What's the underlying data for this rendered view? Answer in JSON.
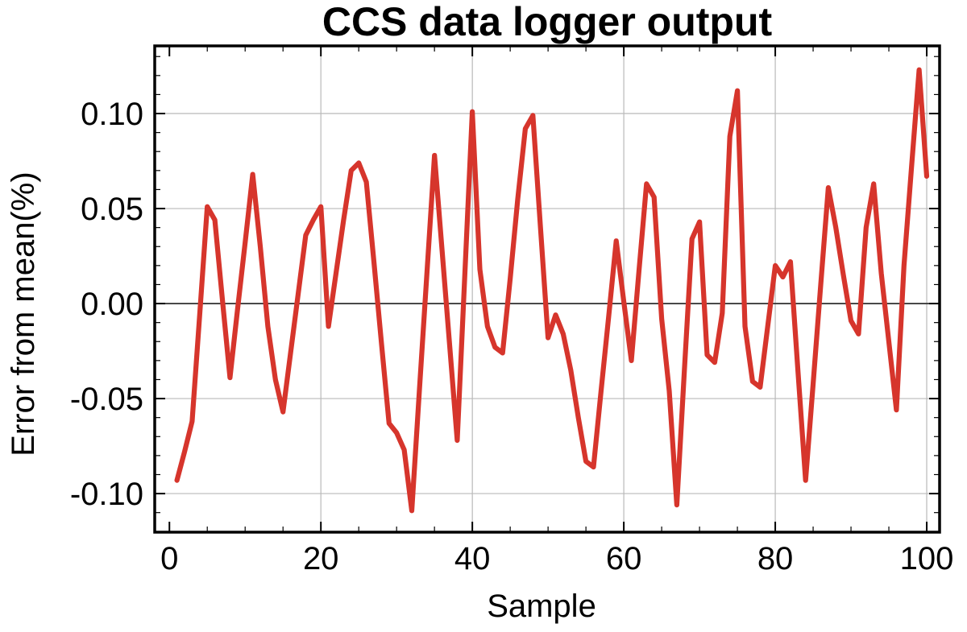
{
  "page": {
    "background": "#ffffff"
  },
  "chart_data": {
    "type": "line",
    "title": "CCS data logger output",
    "xlabel": "Sample",
    "ylabel": "Error from mean(%)",
    "x_start": 1,
    "values": [
      -0.093,
      -0.078,
      -0.062,
      -0.006,
      0.051,
      0.044,
      0.002,
      -0.039,
      -0.003,
      0.032,
      0.068,
      0.03,
      -0.012,
      -0.04,
      -0.057,
      -0.026,
      0.005,
      0.036,
      0.044,
      0.051,
      -0.012,
      0.016,
      0.044,
      0.07,
      0.074,
      0.064,
      0.022,
      -0.021,
      -0.063,
      -0.068,
      -0.077,
      -0.109,
      -0.046,
      0.016,
      0.078,
      0.028,
      -0.022,
      -0.072,
      0.015,
      0.101,
      0.018,
      -0.012,
      -0.023,
      -0.026,
      0.013,
      0.055,
      0.092,
      0.099,
      0.04,
      -0.018,
      -0.006,
      -0.016,
      -0.035,
      -0.06,
      -0.083,
      -0.086,
      -0.046,
      -0.007,
      0.033,
      0.001,
      -0.03,
      0.017,
      0.063,
      0.056,
      -0.008,
      -0.046,
      -0.106,
      -0.035,
      0.034,
      0.043,
      -0.027,
      -0.031,
      -0.005,
      0.088,
      0.112,
      -0.012,
      -0.041,
      -0.044,
      -0.012,
      0.02,
      0.014,
      0.022,
      -0.036,
      -0.093,
      -0.042,
      0.01,
      0.061,
      0.04,
      0.015,
      -0.009,
      -0.016,
      0.04,
      0.063,
      0.016,
      -0.02,
      -0.056,
      0.02,
      0.072,
      0.123,
      0.067
    ],
    "xlim": [
      -1.94,
      101.7
    ],
    "ylim": [
      -0.1203,
      0.1356
    ],
    "x_ticks_major": [
      0,
      20,
      40,
      60,
      80,
      100
    ],
    "x_tick_labels": [
      "0",
      "20",
      "40",
      "60",
      "80",
      "100"
    ],
    "x_tick_minor_step": 5,
    "y_ticks_major": [
      0.1,
      0.05,
      0.0,
      -0.05,
      -0.1
    ],
    "y_tick_labels": [
      "0.10",
      "0.05",
      "0.00",
      "-0.05",
      "-0.10"
    ],
    "y_tick_minor_step": 0.01,
    "y_minor_range": [
      -0.12,
      0.13
    ],
    "grid_x": [
      20,
      40,
      60,
      80,
      100
    ],
    "grid_y": [
      0.1,
      0.05,
      -0.05,
      -0.1
    ],
    "zero_line": 0.0,
    "grid_on": true,
    "legend": "none",
    "line_color": "#d6352c",
    "grid_color": "#b9b9b9",
    "zero_line_color": "#3c3c3c",
    "frame_color": "#000000",
    "text_color": "#000000",
    "line_width": 6.2
  }
}
